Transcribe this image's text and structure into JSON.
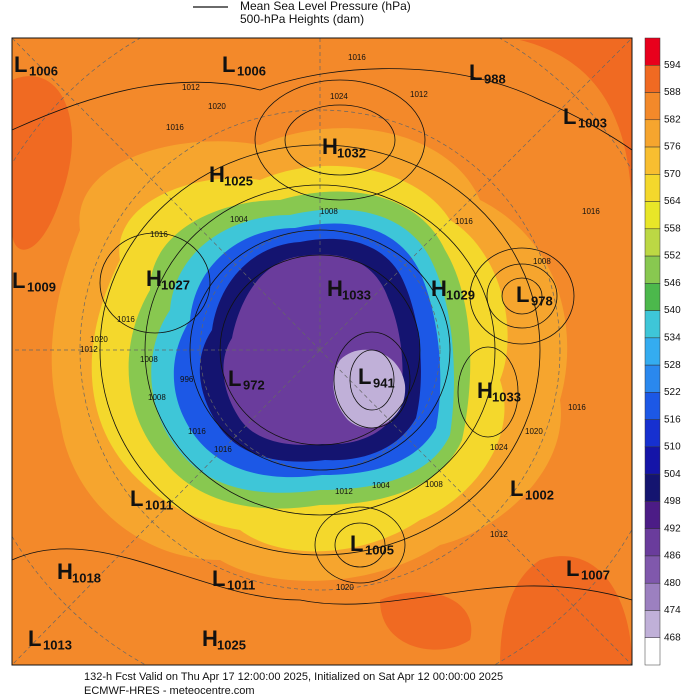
{
  "legend": [
    {
      "label": "Mean Sea Level Pressure (hPa)"
    },
    {
      "label": "500-hPa Heights (dam)"
    }
  ],
  "colorbar": {
    "ticks": [
      594,
      588,
      582,
      576,
      570,
      564,
      558,
      552,
      546,
      540,
      534,
      528,
      522,
      516,
      510,
      504,
      498,
      492,
      486,
      480,
      474,
      468
    ],
    "colors": [
      "#e8001c",
      "#f06a22",
      "#f3892a",
      "#f6a52e",
      "#f8be30",
      "#f4d82c",
      "#e8e628",
      "#bcd844",
      "#88c850",
      "#4cb84c",
      "#3ec6d8",
      "#34acf0",
      "#2a88ee",
      "#1c58e6",
      "#1630d0",
      "#1414a8",
      "#141470",
      "#4c1c86",
      "#6a3c9c",
      "#8058ac",
      "#9c80c0",
      "#c0b0d8",
      "#ffffff"
    ]
  },
  "centers": [
    {
      "letter": "L",
      "value": "1006"
    },
    {
      "letter": "L",
      "value": "1006"
    },
    {
      "letter": "L",
      "value": "988"
    },
    {
      "letter": "L",
      "value": "1003"
    },
    {
      "letter": "H",
      "value": "1032"
    },
    {
      "letter": "H",
      "value": "1025"
    },
    {
      "letter": "L",
      "value": "1009"
    },
    {
      "letter": "H",
      "value": "1027"
    },
    {
      "letter": "H",
      "value": "1033"
    },
    {
      "letter": "H",
      "value": "1029"
    },
    {
      "letter": "L",
      "value": "978"
    },
    {
      "letter": "L",
      "value": "972"
    },
    {
      "letter": "L",
      "value": "941"
    },
    {
      "letter": "H",
      "value": "1033"
    },
    {
      "letter": "L",
      "value": "1011"
    },
    {
      "letter": "L",
      "value": "1002"
    },
    {
      "letter": "L",
      "value": "1005"
    },
    {
      "letter": "H",
      "value": "1018"
    },
    {
      "letter": "L",
      "value": "1011"
    },
    {
      "letter": "L",
      "value": "1007"
    },
    {
      "letter": "L",
      "value": "1013"
    },
    {
      "letter": "H",
      "value": "1025"
    }
  ],
  "isobar_labels": [
    "1012",
    "1016",
    "1024",
    "1020",
    "1016",
    "1012",
    "1016",
    "1012",
    "1008",
    "1004",
    "1008",
    "1016",
    "1020",
    "1016",
    "996",
    "1008",
    "1016",
    "1016",
    "1012",
    "1004",
    "1008",
    "1024",
    "1020",
    "1016",
    "1012",
    "1020",
    "1008",
    "1016"
  ],
  "footer": {
    "line1": "132-h Fcst Valid on Thu Apr 17 12:00:00 2025, Initialized on Sat Apr 12 00:00:00 2025",
    "line2": "ECMWF-HRES - meteocentre.com"
  }
}
